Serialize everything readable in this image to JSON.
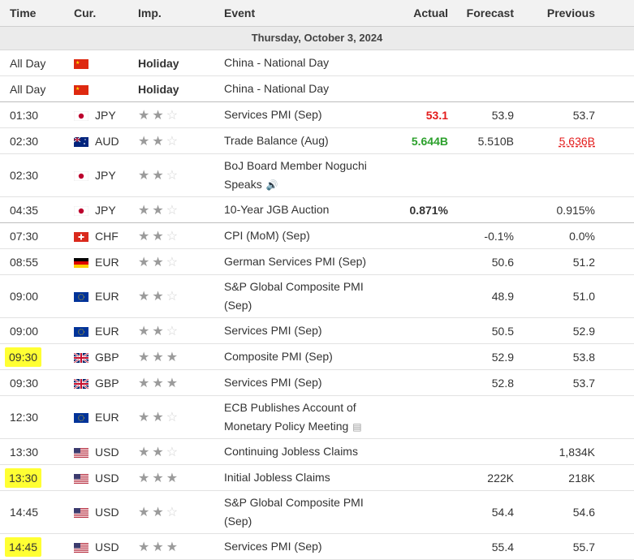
{
  "header": {
    "time": "Time",
    "cur": "Cur.",
    "imp": "Imp.",
    "event": "Event",
    "actual": "Actual",
    "forecast": "Forecast",
    "previous": "Previous"
  },
  "day_label": "Thursday, October 3, 2024",
  "flag_colors": {
    "cn": "#de2910",
    "jp": "#bc002d",
    "au": "#00247d",
    "ch": "#da291c",
    "de_black": "#000000",
    "de_red": "#dd0000",
    "de_gold": "#ffce00",
    "eu": "#003399",
    "eu_star": "#ffcc00",
    "gb_blue": "#012169",
    "gb_red": "#c8102e",
    "us_red": "#b22234",
    "us_blue": "#3c3b6e"
  },
  "rows": [
    {
      "time": "All Day",
      "flag": "cn",
      "cur": "",
      "holiday": "Holiday",
      "stars": 0,
      "event": "China - National Day",
      "actual": "",
      "forecast": "",
      "previous": ""
    },
    {
      "time": "All Day",
      "flag": "cn",
      "cur": "",
      "holiday": "Holiday",
      "stars": 0,
      "event": "China - National Day",
      "actual": "",
      "forecast": "",
      "previous": "",
      "sep": true
    },
    {
      "time": "01:30",
      "flag": "jp",
      "cur": "JPY",
      "stars": 2,
      "event": "Services PMI (Sep)",
      "actual": "53.1",
      "actual_color": "red",
      "forecast": "53.9",
      "previous": "53.7"
    },
    {
      "time": "02:30",
      "flag": "au",
      "cur": "AUD",
      "stars": 2,
      "event": "Trade Balance (Aug)",
      "actual": "5.644B",
      "actual_color": "green",
      "forecast": "5.510B",
      "previous": "5.636B",
      "previous_color": "red"
    },
    {
      "time": "02:30",
      "flag": "jp",
      "cur": "JPY",
      "stars": 2,
      "event": "BoJ Board Member Noguchi Speaks",
      "icon": "speaker-icon",
      "actual": "",
      "forecast": "",
      "previous": ""
    },
    {
      "time": "04:35",
      "flag": "jp",
      "cur": "JPY",
      "stars": 2,
      "event": "10-Year JGB Auction",
      "actual": "0.871%",
      "actual_color": "black",
      "forecast": "",
      "previous": "0.915%",
      "sep": true
    },
    {
      "time": "07:30",
      "flag": "ch",
      "cur": "CHF",
      "stars": 2,
      "event": "CPI (MoM) (Sep)",
      "actual": "",
      "forecast": "-0.1%",
      "previous": "0.0%"
    },
    {
      "time": "08:55",
      "flag": "de",
      "cur": "EUR",
      "stars": 2,
      "event": "German Services PMI (Sep)",
      "actual": "",
      "forecast": "50.6",
      "previous": "51.2"
    },
    {
      "time": "09:00",
      "flag": "eu",
      "cur": "EUR",
      "stars": 2,
      "event": "S&P Global Composite PMI (Sep)",
      "actual": "",
      "forecast": "48.9",
      "previous": "51.0"
    },
    {
      "time": "09:00",
      "flag": "eu",
      "cur": "EUR",
      "stars": 2,
      "event": "Services PMI (Sep)",
      "actual": "",
      "forecast": "50.5",
      "previous": "52.9"
    },
    {
      "time": "09:30",
      "flag": "gb",
      "cur": "GBP",
      "stars": 3,
      "event": "Composite PMI (Sep)",
      "actual": "",
      "forecast": "52.9",
      "previous": "53.8",
      "highlight": true
    },
    {
      "time": "09:30",
      "flag": "gb",
      "cur": "GBP",
      "stars": 3,
      "event": "Services PMI (Sep)",
      "actual": "",
      "forecast": "52.8",
      "previous": "53.7"
    },
    {
      "time": "12:30",
      "flag": "eu",
      "cur": "EUR",
      "stars": 2,
      "event": "ECB Publishes Account of Monetary Policy Meeting",
      "icon": "document-icon",
      "actual": "",
      "forecast": "",
      "previous": ""
    },
    {
      "time": "13:30",
      "flag": "us",
      "cur": "USD",
      "stars": 2,
      "event": "Continuing Jobless Claims",
      "actual": "",
      "forecast": "",
      "previous": "1,834K"
    },
    {
      "time": "13:30",
      "flag": "us",
      "cur": "USD",
      "stars": 3,
      "event": "Initial Jobless Claims",
      "actual": "",
      "forecast": "222K",
      "previous": "218K",
      "highlight": true
    },
    {
      "time": "14:45",
      "flag": "us",
      "cur": "USD",
      "stars": 2,
      "event": "S&P Global Composite PMI (Sep)",
      "actual": "",
      "forecast": "54.4",
      "previous": "54.6"
    },
    {
      "time": "14:45",
      "flag": "us",
      "cur": "USD",
      "stars": 3,
      "event": "Services PMI (Sep)",
      "actual": "",
      "forecast": "55.4",
      "previous": "55.7",
      "highlight": true
    }
  ]
}
